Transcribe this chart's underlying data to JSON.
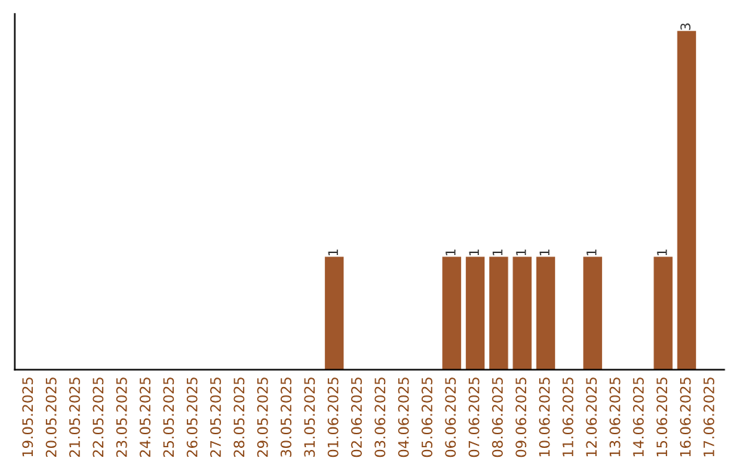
{
  "chart_data": {
    "type": "bar",
    "categories": [
      "19.05.2025",
      "20.05.2025",
      "21.05.2025",
      "22.05.2025",
      "23.05.2025",
      "24.05.2025",
      "25.05.2025",
      "26.05.2025",
      "27.05.2025",
      "28.05.2025",
      "29.05.2025",
      "30.05.2025",
      "31.05.2025",
      "01.06.2025",
      "02.06.2025",
      "03.06.2025",
      "04.06.2025",
      "05.06.2025",
      "06.06.2025",
      "07.06.2025",
      "08.06.2025",
      "09.06.2025",
      "10.06.2025",
      "11.06.2025",
      "12.06.2025",
      "13.06.2025",
      "14.06.2025",
      "15.06.2025",
      "16.06.2025",
      "17.06.2025"
    ],
    "values": [
      null,
      null,
      null,
      null,
      null,
      null,
      null,
      null,
      null,
      null,
      null,
      null,
      null,
      1,
      null,
      null,
      null,
      null,
      1,
      1,
      1,
      1,
      1,
      null,
      1,
      null,
      null,
      1,
      3,
      null
    ],
    "data_labels": true,
    "color": "#a0572b",
    "tick_labels": "x",
    "grid": false,
    "legend": false
  }
}
